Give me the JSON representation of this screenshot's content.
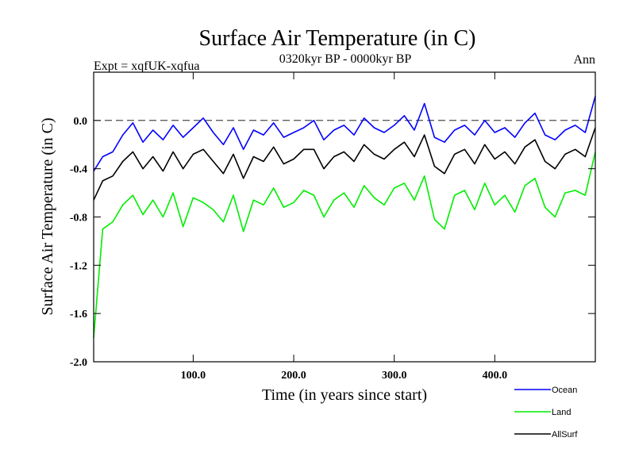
{
  "chart_data": {
    "type": "line",
    "title": "Surface Air Temperature (in C)",
    "subtitle": "0320kyr BP - 0000kyr BP",
    "left_label": "Expt = xqfUK-xqfua",
    "right_label": "Ann",
    "xlabel": "Time (in years since start)",
    "ylabel": "Surface Air Temperature (in C)",
    "xlim": [
      1,
      500
    ],
    "ylim": [
      -2.0,
      0.4
    ],
    "x_ticks": [
      100,
      200,
      300,
      400
    ],
    "x_tick_labels": [
      "100.0",
      "200.0",
      "300.0",
      "400.0"
    ],
    "y_ticks": [
      -2.0,
      -1.6,
      -1.2,
      -0.8,
      -0.4,
      0.0
    ],
    "y_tick_labels": [
      "-2.0",
      "-1.6",
      "-1.2",
      "-0.8",
      "-0.4",
      "0.0"
    ],
    "reference_line": 0.0,
    "x": [
      1,
      10,
      20,
      30,
      40,
      50,
      60,
      70,
      80,
      90,
      100,
      110,
      120,
      130,
      140,
      150,
      160,
      170,
      180,
      190,
      200,
      210,
      220,
      230,
      240,
      250,
      260,
      270,
      280,
      290,
      300,
      310,
      320,
      330,
      340,
      350,
      360,
      370,
      380,
      390,
      400,
      410,
      420,
      430,
      440,
      450,
      460,
      470,
      480,
      490,
      500
    ],
    "series": [
      {
        "name": "Ocean",
        "color": "#0000ff",
        "values": [
          -0.42,
          -0.3,
          -0.26,
          -0.12,
          -0.02,
          -0.18,
          -0.08,
          -0.16,
          -0.04,
          -0.14,
          -0.06,
          0.02,
          -0.1,
          -0.2,
          -0.06,
          -0.24,
          -0.08,
          -0.12,
          -0.02,
          -0.14,
          -0.1,
          -0.06,
          0.0,
          -0.16,
          -0.08,
          -0.04,
          -0.12,
          0.02,
          -0.06,
          -0.1,
          -0.04,
          0.04,
          -0.08,
          0.14,
          -0.14,
          -0.18,
          -0.08,
          -0.04,
          -0.12,
          0.0,
          -0.1,
          -0.06,
          -0.14,
          -0.02,
          0.06,
          -0.12,
          -0.16,
          -0.08,
          -0.04,
          -0.1,
          0.2
        ]
      },
      {
        "name": "Land",
        "color": "#00ee00",
        "values": [
          -1.8,
          -0.9,
          -0.84,
          -0.7,
          -0.62,
          -0.78,
          -0.66,
          -0.8,
          -0.6,
          -0.88,
          -0.64,
          -0.68,
          -0.74,
          -0.84,
          -0.62,
          -0.92,
          -0.66,
          -0.7,
          -0.56,
          -0.72,
          -0.68,
          -0.58,
          -0.62,
          -0.8,
          -0.66,
          -0.6,
          -0.72,
          -0.54,
          -0.64,
          -0.7,
          -0.56,
          -0.52,
          -0.66,
          -0.46,
          -0.82,
          -0.9,
          -0.62,
          -0.58,
          -0.74,
          -0.52,
          -0.7,
          -0.62,
          -0.76,
          -0.54,
          -0.48,
          -0.72,
          -0.8,
          -0.6,
          -0.58,
          -0.62,
          -0.26
        ]
      },
      {
        "name": "AllSurf",
        "color": "#000000",
        "values": [
          -0.66,
          -0.5,
          -0.46,
          -0.34,
          -0.26,
          -0.4,
          -0.3,
          -0.42,
          -0.26,
          -0.4,
          -0.28,
          -0.24,
          -0.34,
          -0.44,
          -0.28,
          -0.48,
          -0.3,
          -0.34,
          -0.22,
          -0.36,
          -0.32,
          -0.24,
          -0.24,
          -0.4,
          -0.3,
          -0.26,
          -0.34,
          -0.2,
          -0.28,
          -0.32,
          -0.24,
          -0.18,
          -0.3,
          -0.12,
          -0.38,
          -0.44,
          -0.28,
          -0.24,
          -0.36,
          -0.2,
          -0.32,
          -0.26,
          -0.36,
          -0.22,
          -0.16,
          -0.34,
          -0.4,
          -0.28,
          -0.24,
          -0.3,
          -0.06
        ]
      }
    ],
    "legend": [
      {
        "name": "Ocean",
        "color": "#0000ff"
      },
      {
        "name": "Land",
        "color": "#00ee00"
      },
      {
        "name": "AllSurf",
        "color": "#000000"
      }
    ],
    "legend_placement": "bottom-right, below plot"
  }
}
